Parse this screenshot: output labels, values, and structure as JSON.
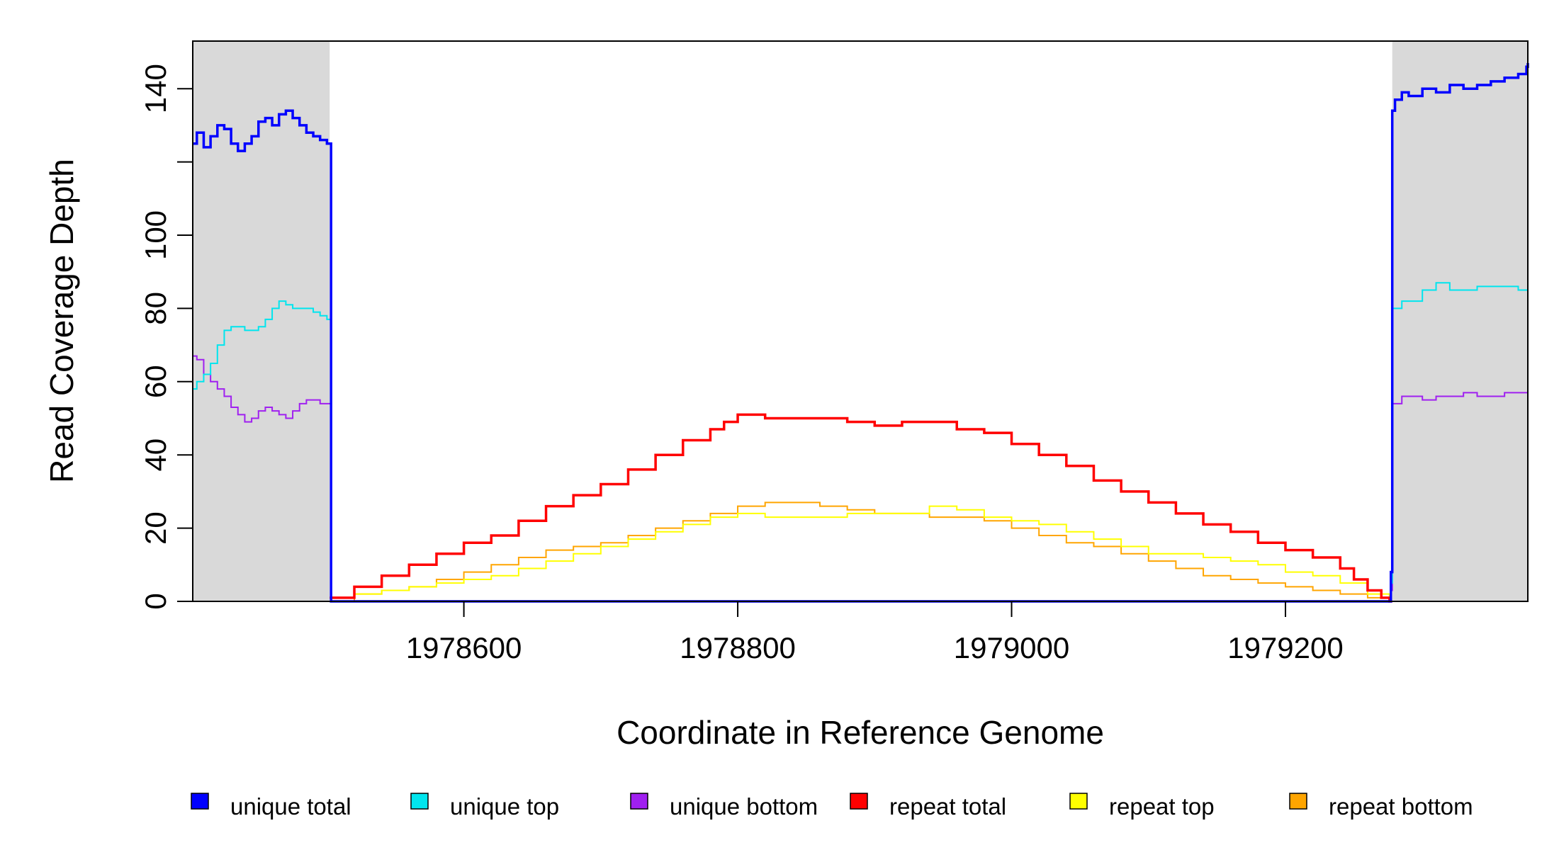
{
  "chart_data": {
    "type": "line",
    "title": "",
    "xlabel": "Coordinate in Reference Genome",
    "ylabel": "Read Coverage Depth",
    "xlim": [
      1978402,
      1979377
    ],
    "ylim": [
      0,
      153
    ],
    "x_ticks": [
      1978600,
      1978800,
      1979000,
      1979200
    ],
    "y_ticks": [
      0,
      20,
      40,
      60,
      80,
      100,
      140
    ],
    "unique_regions": [
      [
        1978402,
        1978502
      ],
      [
        1979278,
        1979377
      ]
    ],
    "shading_color": "#d9d9d9",
    "legend_position": "bottom",
    "legend": [
      {
        "label": "unique total",
        "color": "#0000ff"
      },
      {
        "label": "unique top",
        "color": "#00e5ee"
      },
      {
        "label": "unique bottom",
        "color": "#a020f0"
      },
      {
        "label": "repeat total",
        "color": "#ff0000"
      },
      {
        "label": "repeat top",
        "color": "#ffff00"
      },
      {
        "label": "repeat bottom",
        "color": "#ffa500"
      }
    ],
    "series": [
      {
        "name": "unique total",
        "color": "#0000ff",
        "x": [
          1978402,
          1978405,
          1978410,
          1978415,
          1978420,
          1978425,
          1978430,
          1978435,
          1978440,
          1978445,
          1978450,
          1978455,
          1978460,
          1978465,
          1978470,
          1978475,
          1978480,
          1978485,
          1978490,
          1978495,
          1978500,
          1978502,
          1978503,
          1979276,
          1979277,
          1979278,
          1979280,
          1979285,
          1979290,
          1979300,
          1979310,
          1979320,
          1979330,
          1979340,
          1979350,
          1979360,
          1979370,
          1979376,
          1979377
        ],
        "y": [
          125,
          128,
          124,
          127,
          130,
          129,
          125,
          123,
          125,
          127,
          131,
          132,
          130,
          133,
          134,
          132,
          130,
          128,
          127,
          126,
          125,
          125,
          0,
          0,
          8,
          134,
          137,
          139,
          138,
          140,
          139,
          141,
          140,
          141,
          142,
          143,
          144,
          146,
          147
        ]
      },
      {
        "name": "unique top",
        "color": "#00e5ee",
        "x": [
          1978402,
          1978405,
          1978410,
          1978415,
          1978420,
          1978425,
          1978430,
          1978435,
          1978440,
          1978445,
          1978450,
          1978455,
          1978460,
          1978465,
          1978470,
          1978475,
          1978480,
          1978485,
          1978490,
          1978495,
          1978500,
          1978502,
          1978503,
          1979276,
          1979277,
          1979278,
          1979285,
          1979290,
          1979300,
          1979310,
          1979320,
          1979330,
          1979340,
          1979350,
          1979360,
          1979370,
          1979377
        ],
        "y": [
          58,
          60,
          62,
          65,
          70,
          74,
          75,
          75,
          74,
          74,
          75,
          77,
          80,
          82,
          81,
          80,
          80,
          80,
          79,
          78,
          77,
          77,
          0,
          0,
          5,
          80,
          82,
          82,
          85,
          87,
          85,
          85,
          86,
          86,
          86,
          85,
          89
        ]
      },
      {
        "name": "unique bottom",
        "color": "#a020f0",
        "x": [
          1978402,
          1978405,
          1978410,
          1978415,
          1978420,
          1978425,
          1978430,
          1978435,
          1978440,
          1978445,
          1978450,
          1978455,
          1978460,
          1978465,
          1978470,
          1978475,
          1978480,
          1978485,
          1978490,
          1978495,
          1978500,
          1978502,
          1978503,
          1979276,
          1979277,
          1979278,
          1979285,
          1979290,
          1979300,
          1979310,
          1979320,
          1979330,
          1979340,
          1979350,
          1979360,
          1979370,
          1979377
        ],
        "y": [
          67,
          66,
          62,
          60,
          58,
          56,
          53,
          51,
          49,
          50,
          52,
          53,
          52,
          51,
          50,
          52,
          54,
          55,
          55,
          54,
          54,
          54,
          0,
          0,
          3,
          54,
          56,
          56,
          55,
          56,
          56,
          57,
          56,
          56,
          57,
          57,
          58
        ]
      },
      {
        "name": "repeat total",
        "color": "#ff0000",
        "x": [
          1978502,
          1978520,
          1978540,
          1978560,
          1978580,
          1978600,
          1978620,
          1978640,
          1978660,
          1978680,
          1978700,
          1978720,
          1978740,
          1978760,
          1978780,
          1978790,
          1978800,
          1978820,
          1978840,
          1978860,
          1978880,
          1978900,
          1978920,
          1978940,
          1978960,
          1978980,
          1979000,
          1979020,
          1979040,
          1979060,
          1979080,
          1979100,
          1979120,
          1979140,
          1979160,
          1979180,
          1979200,
          1979220,
          1979240,
          1979250,
          1979260,
          1979270,
          1979276,
          1979278
        ],
        "y": [
          1,
          4,
          7,
          10,
          13,
          16,
          18,
          22,
          26,
          29,
          32,
          36,
          40,
          44,
          47,
          49,
          51,
          50,
          50,
          50,
          49,
          48,
          49,
          49,
          47,
          46,
          43,
          40,
          37,
          33,
          30,
          27,
          24,
          21,
          19,
          16,
          14,
          12,
          9,
          6,
          3,
          1,
          0,
          0
        ]
      },
      {
        "name": "repeat top",
        "color": "#ffff00",
        "x": [
          1978502,
          1978520,
          1978540,
          1978560,
          1978580,
          1978600,
          1978620,
          1978640,
          1978660,
          1978680,
          1978700,
          1978720,
          1978740,
          1978760,
          1978780,
          1978800,
          1978820,
          1978840,
          1978860,
          1978880,
          1978900,
          1978920,
          1978940,
          1978960,
          1978980,
          1979000,
          1979020,
          1979040,
          1979060,
          1979080,
          1979100,
          1979120,
          1979140,
          1979160,
          1979180,
          1979200,
          1979220,
          1979240,
          1979260,
          1979276
        ],
        "y": [
          1,
          2,
          3,
          4,
          5,
          6,
          7,
          9,
          11,
          13,
          15,
          17,
          19,
          21,
          23,
          24,
          23,
          23,
          23,
          24,
          24,
          24,
          26,
          25,
          23,
          22,
          21,
          19,
          17,
          15,
          13,
          13,
          12,
          11,
          10,
          8,
          7,
          5,
          2,
          0
        ]
      },
      {
        "name": "repeat bottom",
        "color": "#ffa500",
        "x": [
          1978502,
          1978520,
          1978540,
          1978560,
          1978580,
          1978600,
          1978620,
          1978640,
          1978660,
          1978680,
          1978700,
          1978720,
          1978740,
          1978760,
          1978780,
          1978800,
          1978820,
          1978840,
          1978860,
          1978880,
          1978900,
          1978920,
          1978940,
          1978960,
          1978980,
          1979000,
          1979020,
          1979040,
          1979060,
          1979080,
          1979100,
          1979120,
          1979140,
          1979160,
          1979180,
          1979200,
          1979220,
          1979240,
          1979260,
          1979276
        ],
        "y": [
          0,
          2,
          3,
          4,
          6,
          8,
          10,
          12,
          14,
          15,
          16,
          18,
          20,
          22,
          24,
          26,
          27,
          27,
          26,
          25,
          24,
          24,
          23,
          23,
          22,
          20,
          18,
          16,
          15,
          13,
          11,
          9,
          7,
          6,
          5,
          4,
          3,
          2,
          1,
          0
        ]
      }
    ]
  }
}
